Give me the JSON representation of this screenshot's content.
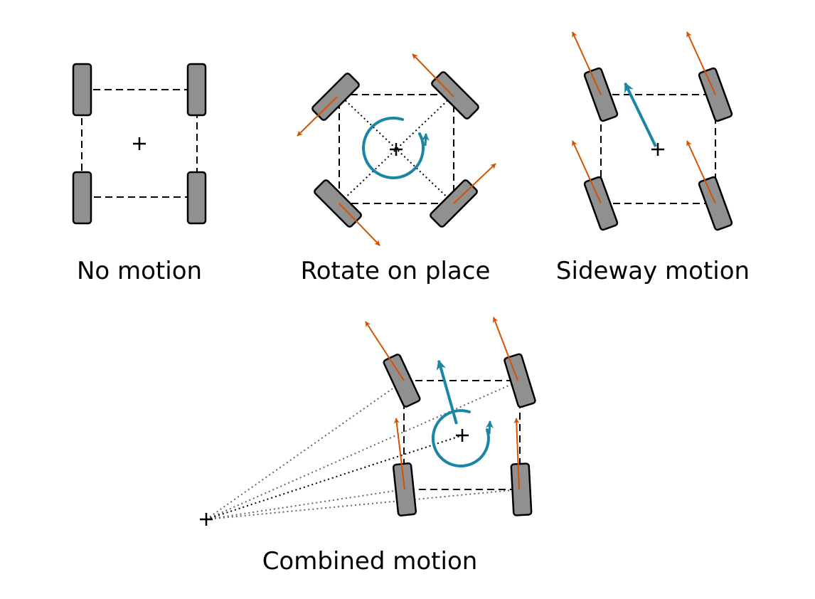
{
  "captions": [
    "No motion",
    "Rotate on place",
    "Sideway motion",
    "Combined motion"
  ],
  "colors": {
    "wheel_fill": "#909090",
    "outline": "#000000",
    "wheel_velocity": "#d35400",
    "body_velocity": "#1a86a5",
    "construction_line": "#666666"
  },
  "icons": {
    "body_center": "plus-marker",
    "rotation": "circular-arrow",
    "velocity": "arrow"
  }
}
